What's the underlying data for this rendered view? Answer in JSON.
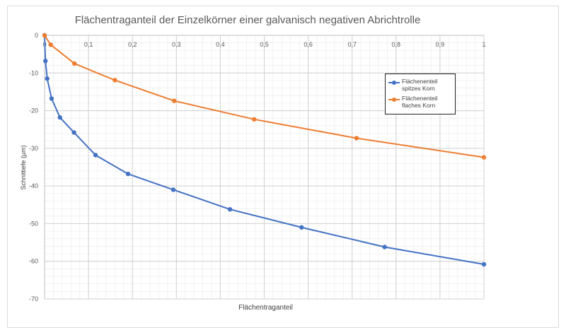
{
  "chart_data": {
    "type": "line",
    "title": "Flächentraganteil der Einzelkörner einer galvanisch negativen Abrichtrolle",
    "xlabel": "Flächentraganteil",
    "ylabel": "Schnittiefe (µm)",
    "xlim": [
      0,
      1
    ],
    "ylim": [
      -70,
      0
    ],
    "x_ticks": [
      "0",
      "0,1",
      "0,2",
      "0,3",
      "0,4",
      "0,5",
      "0,6",
      "0,7",
      "0,8",
      "0,9",
      "1"
    ],
    "y_ticks": [
      "0",
      "-10",
      "-20",
      "-30",
      "-40",
      "-50",
      "-60",
      "-70"
    ],
    "grid": true,
    "legend_position": "right",
    "series": [
      {
        "name": "Flächenenteil spitzes Korn",
        "color": "#4472C4",
        "points": [
          {
            "x": 0,
            "y": 0
          },
          {
            "x": 0.002,
            "y": -6.8
          },
          {
            "x": 0.006,
            "y": -11.5
          },
          {
            "x": 0.016,
            "y": -16.8
          },
          {
            "x": 0.035,
            "y": -21.8
          },
          {
            "x": 0.067,
            "y": -25.8
          },
          {
            "x": 0.116,
            "y": -31.8
          },
          {
            "x": 0.19,
            "y": -36.8
          },
          {
            "x": 0.293,
            "y": -41.0
          },
          {
            "x": 0.422,
            "y": -46.2
          },
          {
            "x": 0.585,
            "y": -51.0
          },
          {
            "x": 0.774,
            "y": -56.2
          },
          {
            "x": 1.0,
            "y": -60.8
          }
        ]
      },
      {
        "name": "Flächenenteil flaches Korn",
        "color": "#ED7D31",
        "points": [
          {
            "x": 0,
            "y": 0
          },
          {
            "x": 0.014,
            "y": -2.5
          },
          {
            "x": 0.068,
            "y": -7.5
          },
          {
            "x": 0.16,
            "y": -11.9
          },
          {
            "x": 0.295,
            "y": -17.4
          },
          {
            "x": 0.477,
            "y": -22.3
          },
          {
            "x": 0.71,
            "y": -27.3
          },
          {
            "x": 1.0,
            "y": -32.4
          }
        ]
      }
    ]
  }
}
